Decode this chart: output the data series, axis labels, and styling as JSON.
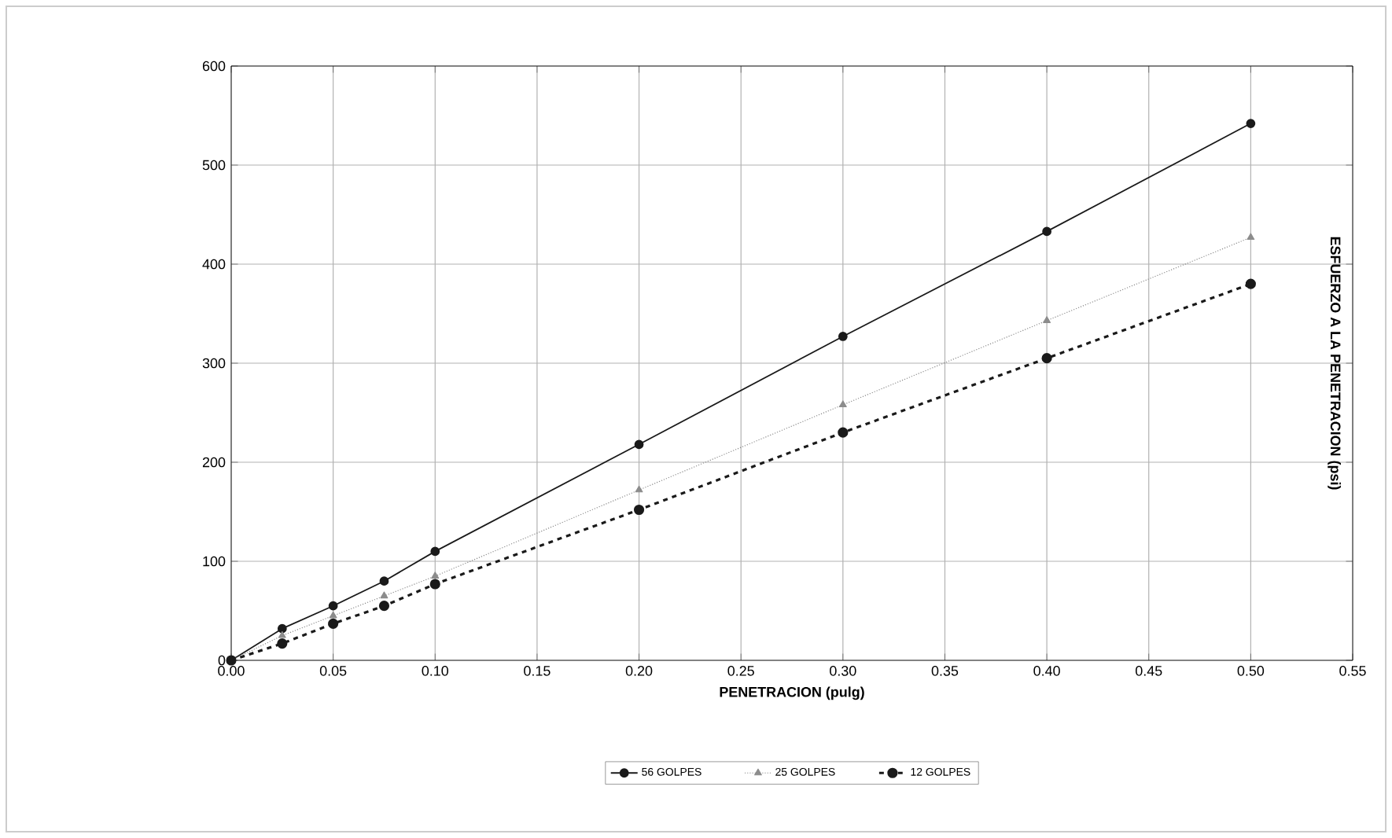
{
  "chart_data": {
    "type": "line",
    "xlabel": "PENETRACION (pulg)",
    "ylabel": "ESFUERZO A LA PENETRACION (psi)",
    "x": [
      0,
      0.025,
      0.05,
      0.075,
      0.1,
      0.2,
      0.3,
      0.4,
      0.5
    ],
    "series": [
      {
        "name": "56 GOLPES",
        "color": "#1a1a1a",
        "marker": "circle",
        "line_style": "solid",
        "values": [
          0,
          32,
          55,
          80,
          110,
          218,
          327,
          433,
          542
        ]
      },
      {
        "name": "25 GOLPES",
        "color": "#8c8c8c",
        "marker": "triangle",
        "line_style": "dotted",
        "values": [
          0,
          25,
          45,
          65,
          85,
          172,
          258,
          343,
          427
        ]
      },
      {
        "name": "12 GOLPES",
        "color": "#1a1a1a",
        "marker": "circle",
        "line_style": "dashed",
        "values": [
          0,
          17,
          37,
          55,
          77,
          152,
          230,
          305,
          380
        ]
      }
    ],
    "xlim": [
      0,
      0.55
    ],
    "xticks": [
      {
        "value": 0,
        "label": "0.00"
      },
      {
        "value": 0.05,
        "label": "0.05"
      },
      {
        "value": 0.1,
        "label": "0.10"
      },
      {
        "value": 0.15,
        "label": "0.15"
      },
      {
        "value": 0.2,
        "label": "0.20"
      },
      {
        "value": 0.25,
        "label": "0.25"
      },
      {
        "value": 0.3,
        "label": "0.30"
      },
      {
        "value": 0.35,
        "label": "0.35"
      },
      {
        "value": 0.4,
        "label": "0.40"
      },
      {
        "value": 0.45,
        "label": "0.45"
      },
      {
        "value": 0.5,
        "label": "0.50"
      },
      {
        "value": 0.55,
        "label": "0.55"
      }
    ],
    "ylim": [
      0,
      600
    ],
    "yticks": [
      0,
      100,
      200,
      300,
      400,
      500,
      600
    ],
    "grid": true,
    "legend": "bottom"
  }
}
